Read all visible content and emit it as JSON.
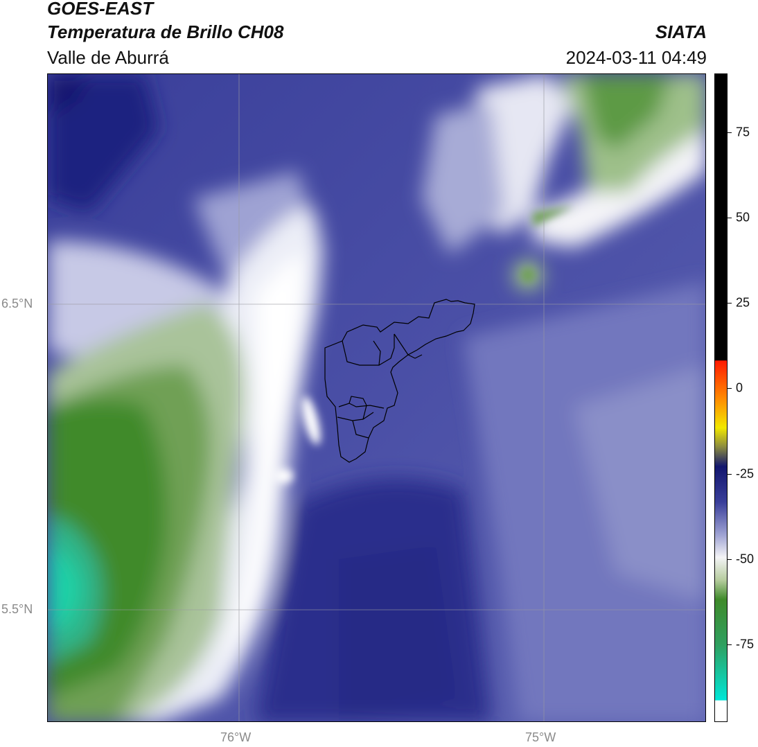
{
  "header": {
    "satellite": "GOES-EAST",
    "product": "Temperatura de Brillo CH08",
    "region": "Valle de Aburrá",
    "agency": "SIATA",
    "timestamp": "2024-03-11 04:49"
  },
  "map": {
    "lat_labels": [
      "6.5°N",
      "5.5°N"
    ],
    "lon_labels": [
      "76°W",
      "75°W"
    ],
    "gridlines": true,
    "overlay": "municipal boundaries of Valle de Aburrá"
  },
  "colorbar": {
    "ticks": [
      "75",
      "50",
      "25",
      "0",
      "-25",
      "-50",
      "-75"
    ],
    "colors": {
      "cyan": "#1fd3a8",
      "green": "#3f8a2a",
      "white": "#f4f4f6",
      "lavender": "#8a8fc8",
      "indigo": "#2a2f8c",
      "navy": "#12166e",
      "yellow": "#f2e800",
      "orange": "#ff8a00",
      "red": "#ff1a00",
      "black": "#000000"
    }
  }
}
